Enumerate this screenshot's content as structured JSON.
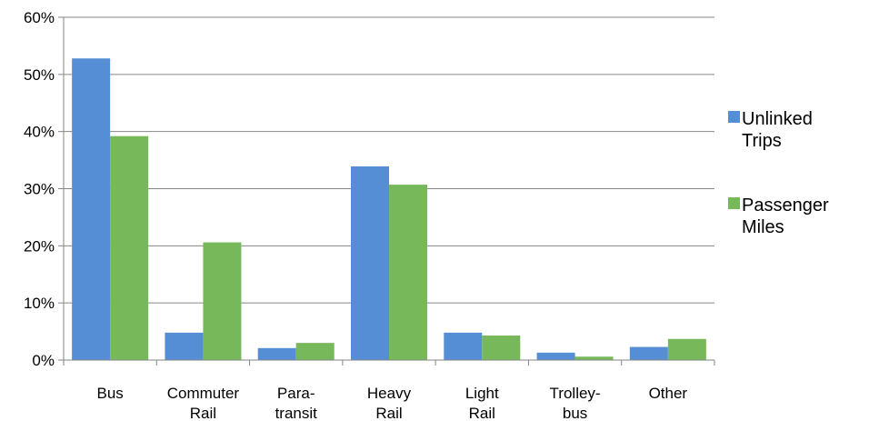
{
  "chart_data": {
    "type": "bar",
    "categories": [
      [
        "Bus"
      ],
      [
        "Commuter",
        "Rail"
      ],
      [
        "Para-",
        "transit"
      ],
      [
        "Heavy",
        "Rail"
      ],
      [
        "Light",
        "Rail"
      ],
      [
        "Trolley-",
        "bus"
      ],
      [
        "Other"
      ]
    ],
    "series": [
      {
        "name": [
          "Unlinked",
          "Trips"
        ],
        "color": "#558ED5",
        "values": [
          52.8,
          4.8,
          2.1,
          33.9,
          4.8,
          1.3,
          2.3
        ]
      },
      {
        "name": [
          "Passenger",
          "Miles"
        ],
        "color": "#77B85A",
        "values": [
          39.2,
          20.6,
          3.0,
          30.7,
          4.3,
          0.6,
          3.7
        ]
      }
    ],
    "y_ticks": [
      "0%",
      "10%",
      "20%",
      "30%",
      "40%",
      "50%",
      "60%"
    ],
    "ylim": [
      0,
      60
    ],
    "grid": true,
    "legend_position": "right",
    "title": "",
    "xlabel": "",
    "ylabel": ""
  }
}
